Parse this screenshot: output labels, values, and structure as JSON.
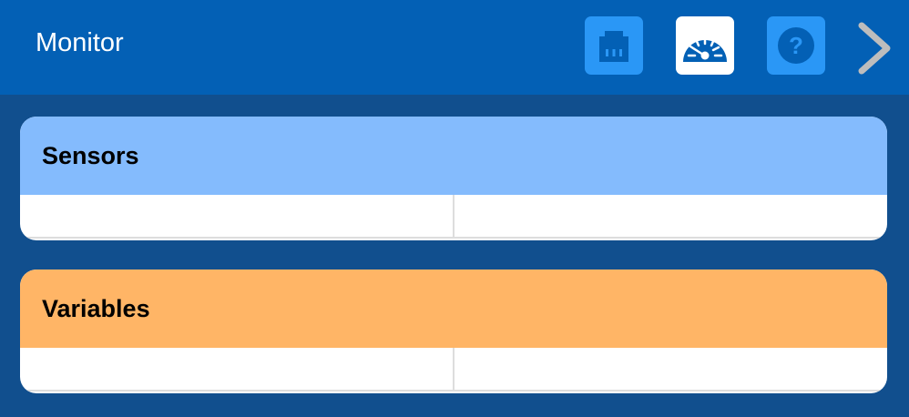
{
  "header": {
    "title": "Monitor",
    "buttons": [
      {
        "icon": "ethernet-port-icon",
        "active": false
      },
      {
        "icon": "gauge-icon",
        "active": true
      },
      {
        "icon": "help-icon",
        "active": false
      },
      {
        "icon": "chevron-right-icon"
      }
    ]
  },
  "panels": [
    {
      "title": "Sensors",
      "color": "#84bbfd",
      "cells": [
        "",
        ""
      ]
    },
    {
      "title": "Variables",
      "color": "#ffb566",
      "cells": [
        "",
        ""
      ]
    }
  ]
}
